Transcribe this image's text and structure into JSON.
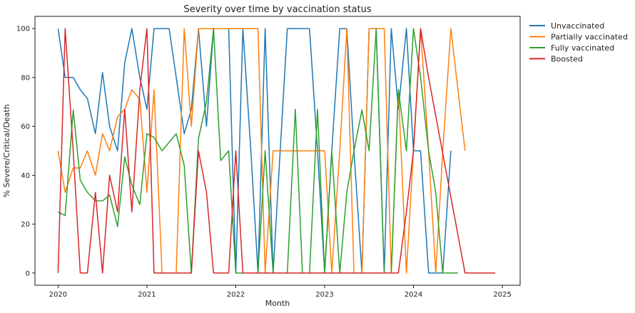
{
  "chart_data": {
    "type": "line",
    "title": "Severity over time by vaccination status",
    "xlabel": "Month",
    "ylabel": "% Severe/Critical/Death",
    "xlim": [
      2019.74,
      2025.2
    ],
    "ylim": [
      -5,
      105
    ],
    "x_ticks": [
      2020,
      2021,
      2022,
      2023,
      2024,
      2025
    ],
    "x_tick_labels": [
      "2020",
      "2021",
      "2022",
      "2023",
      "2024",
      "2025"
    ],
    "y_ticks": [
      0,
      20,
      40,
      60,
      80,
      100
    ],
    "y_tick_labels": [
      "0",
      "20",
      "40",
      "60",
      "80",
      "100"
    ],
    "grid": false,
    "legend_position": "outside-right",
    "series": [
      {
        "name": "Unvaccinated",
        "color": "#1f77b4",
        "points": [
          [
            2020.0,
            100
          ],
          [
            2020.08,
            80
          ],
          [
            2020.17,
            80
          ],
          [
            2020.25,
            75
          ],
          [
            2020.33,
            71.4
          ],
          [
            2020.42,
            57
          ],
          [
            2020.5,
            82
          ],
          [
            2020.58,
            60
          ],
          [
            2020.67,
            50
          ],
          [
            2020.75,
            86
          ],
          [
            2020.83,
            100
          ],
          [
            2020.92,
            80
          ],
          [
            2021.0,
            67
          ],
          [
            2021.08,
            100
          ],
          [
            2021.17,
            100
          ],
          [
            2021.25,
            100
          ],
          [
            2021.33,
            80
          ],
          [
            2021.42,
            57
          ],
          [
            2021.5,
            67
          ],
          [
            2021.58,
            100
          ],
          [
            2021.67,
            60
          ],
          [
            2021.75,
            100
          ],
          [
            2021.83,
            100
          ],
          [
            2021.92,
            100
          ],
          [
            2022.0,
            0
          ],
          [
            2022.08,
            100
          ],
          [
            2022.17,
            50
          ],
          [
            2022.25,
            0
          ],
          [
            2022.33,
            100
          ],
          [
            2022.42,
            0
          ],
          [
            2022.5,
            50
          ],
          [
            2022.58,
            100
          ],
          [
            2022.67,
            100
          ],
          [
            2022.75,
            100
          ],
          [
            2022.83,
            100
          ],
          [
            2022.92,
            50
          ],
          [
            2023.0,
            0
          ],
          [
            2023.08,
            50
          ],
          [
            2023.17,
            100
          ],
          [
            2023.25,
            100
          ],
          [
            2023.33,
            50
          ],
          [
            2023.42,
            0
          ],
          [
            2023.5,
            100
          ],
          [
            2023.58,
            100
          ],
          [
            2023.67,
            0
          ],
          [
            2023.75,
            100
          ],
          [
            2023.83,
            67
          ],
          [
            2023.92,
            100
          ],
          [
            2024.0,
            50
          ],
          [
            2024.08,
            50
          ],
          [
            2024.17,
            0
          ],
          [
            2024.25,
            0
          ],
          [
            2024.33,
            0
          ],
          [
            2024.42,
            50
          ]
        ]
      },
      {
        "name": "Partially vaccinated",
        "color": "#ff7f0e",
        "points": [
          [
            2020.0,
            50
          ],
          [
            2020.08,
            33
          ],
          [
            2020.17,
            43
          ],
          [
            2020.25,
            43
          ],
          [
            2020.33,
            50
          ],
          [
            2020.42,
            40
          ],
          [
            2020.5,
            57
          ],
          [
            2020.58,
            50
          ],
          [
            2020.67,
            64
          ],
          [
            2020.75,
            67
          ],
          [
            2020.83,
            75
          ],
          [
            2020.92,
            71
          ],
          [
            2021.0,
            33
          ],
          [
            2021.08,
            75
          ],
          [
            2021.17,
            0
          ],
          [
            2021.25,
            0
          ],
          [
            2021.33,
            0
          ],
          [
            2021.42,
            100
          ],
          [
            2021.5,
            60
          ],
          [
            2021.58,
            100
          ],
          [
            2021.67,
            100
          ],
          [
            2021.75,
            100
          ],
          [
            2021.83,
            100
          ],
          [
            2021.92,
            100
          ],
          [
            2022.0,
            100
          ],
          [
            2022.08,
            100
          ],
          [
            2022.17,
            100
          ],
          [
            2022.25,
            100
          ],
          [
            2022.33,
            0
          ],
          [
            2022.42,
            50
          ],
          [
            2022.5,
            50
          ],
          [
            2022.58,
            50
          ],
          [
            2022.67,
            50
          ],
          [
            2022.75,
            50
          ],
          [
            2022.83,
            50
          ],
          [
            2022.92,
            50
          ],
          [
            2023.0,
            50
          ],
          [
            2023.08,
            0
          ],
          [
            2023.17,
            50
          ],
          [
            2023.25,
            100
          ],
          [
            2023.33,
            0
          ],
          [
            2023.42,
            0
          ],
          [
            2023.5,
            100
          ],
          [
            2023.58,
            100
          ],
          [
            2023.67,
            100
          ],
          [
            2023.75,
            0
          ],
          [
            2023.83,
            75
          ],
          [
            2023.92,
            0
          ],
          [
            2024.0,
            50
          ],
          [
            2024.08,
            100
          ],
          [
            2024.17,
            50
          ],
          [
            2024.25,
            0
          ],
          [
            2024.33,
            50
          ],
          [
            2024.42,
            100
          ],
          [
            2024.58,
            50
          ]
        ]
      },
      {
        "name": "Fully vaccinated",
        "color": "#2ca02c",
        "points": [
          [
            2020.0,
            25
          ],
          [
            2020.08,
            23.5
          ],
          [
            2020.17,
            66.7
          ],
          [
            2020.25,
            38
          ],
          [
            2020.33,
            33
          ],
          [
            2020.42,
            29.5
          ],
          [
            2020.5,
            29.5
          ],
          [
            2020.58,
            32
          ],
          [
            2020.67,
            19
          ],
          [
            2020.75,
            47.5
          ],
          [
            2020.83,
            36
          ],
          [
            2020.92,
            28
          ],
          [
            2021.0,
            57
          ],
          [
            2021.08,
            55.5
          ],
          [
            2021.17,
            50
          ],
          [
            2021.25,
            53.5
          ],
          [
            2021.33,
            57
          ],
          [
            2021.42,
            44
          ],
          [
            2021.5,
            0
          ],
          [
            2021.58,
            55
          ],
          [
            2021.67,
            70
          ],
          [
            2021.75,
            100
          ],
          [
            2021.83,
            46
          ],
          [
            2021.92,
            50
          ],
          [
            2022.0,
            0
          ],
          [
            2022.08,
            0
          ],
          [
            2022.17,
            0
          ],
          [
            2022.25,
            0
          ],
          [
            2022.33,
            50
          ],
          [
            2022.42,
            0
          ],
          [
            2022.5,
            0
          ],
          [
            2022.58,
            0
          ],
          [
            2022.67,
            67
          ],
          [
            2022.75,
            0
          ],
          [
            2022.83,
            0
          ],
          [
            2022.92,
            67
          ],
          [
            2023.0,
            0
          ],
          [
            2023.08,
            50
          ],
          [
            2023.17,
            0
          ],
          [
            2023.25,
            33
          ],
          [
            2023.33,
            50
          ],
          [
            2023.42,
            66.7
          ],
          [
            2023.5,
            50
          ],
          [
            2023.58,
            100
          ],
          [
            2023.67,
            0
          ],
          [
            2023.75,
            0
          ],
          [
            2023.83,
            75
          ],
          [
            2023.92,
            50
          ],
          [
            2024.0,
            100
          ],
          [
            2024.08,
            80
          ],
          [
            2024.17,
            50
          ],
          [
            2024.25,
            33
          ],
          [
            2024.33,
            0
          ],
          [
            2024.42,
            0
          ],
          [
            2024.5,
            0
          ]
        ]
      },
      {
        "name": "Boosted",
        "color": "#d62728",
        "points": [
          [
            2020.0,
            0
          ],
          [
            2020.08,
            100
          ],
          [
            2020.17,
            50
          ],
          [
            2020.25,
            0
          ],
          [
            2020.33,
            0
          ],
          [
            2020.42,
            33
          ],
          [
            2020.5,
            0
          ],
          [
            2020.58,
            40
          ],
          [
            2020.67,
            25
          ],
          [
            2020.75,
            67
          ],
          [
            2020.83,
            25
          ],
          [
            2020.92,
            75
          ],
          [
            2021.0,
            100
          ],
          [
            2021.08,
            0
          ],
          [
            2021.17,
            0
          ],
          [
            2021.25,
            0
          ],
          [
            2021.33,
            0
          ],
          [
            2021.42,
            0
          ],
          [
            2021.5,
            0
          ],
          [
            2021.58,
            50
          ],
          [
            2021.67,
            33
          ],
          [
            2021.75,
            0
          ],
          [
            2021.83,
            0
          ],
          [
            2021.92,
            0
          ],
          [
            2022.0,
            50
          ],
          [
            2022.08,
            0
          ],
          [
            2022.17,
            0
          ],
          [
            2022.25,
            0
          ],
          [
            2022.33,
            0
          ],
          [
            2022.42,
            0
          ],
          [
            2022.5,
            0
          ],
          [
            2022.58,
            0
          ],
          [
            2022.67,
            0
          ],
          [
            2022.75,
            0
          ],
          [
            2022.83,
            0
          ],
          [
            2022.92,
            0
          ],
          [
            2023.0,
            0
          ],
          [
            2023.08,
            0
          ],
          [
            2023.17,
            0
          ],
          [
            2023.25,
            0
          ],
          [
            2023.33,
            0
          ],
          [
            2023.42,
            0
          ],
          [
            2023.5,
            0
          ],
          [
            2023.58,
            0
          ],
          [
            2023.67,
            0
          ],
          [
            2023.75,
            0
          ],
          [
            2023.83,
            0
          ],
          [
            2023.92,
            25
          ],
          [
            2024.0,
            50
          ],
          [
            2024.08,
            100
          ],
          [
            2024.17,
            80
          ],
          [
            2024.58,
            0
          ],
          [
            2024.67,
            0
          ],
          [
            2024.75,
            0
          ],
          [
            2024.83,
            0
          ],
          [
            2024.92,
            0
          ]
        ]
      }
    ]
  }
}
